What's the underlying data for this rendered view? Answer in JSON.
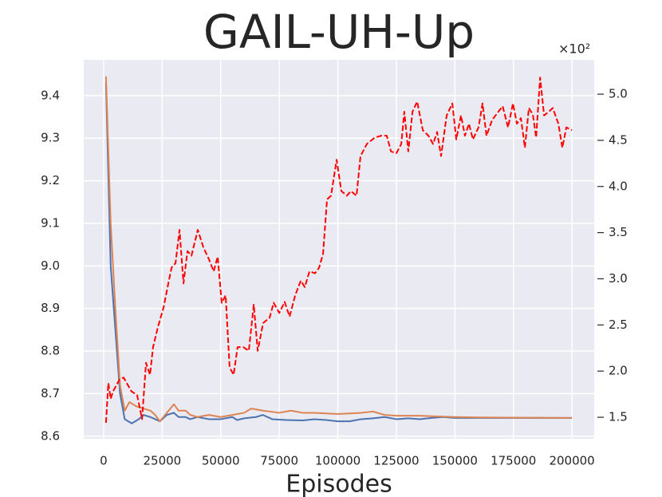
{
  "chart_data": {
    "type": "line",
    "title": "GAIL-UH-Up",
    "x_label": "Episodes",
    "y2_offset_text": "×10²",
    "xlim": [
      -8500,
      209500
    ],
    "xticks": [
      0,
      25000,
      50000,
      75000,
      100000,
      125000,
      150000,
      175000,
      200000
    ],
    "ylim": [
      8.594,
      9.484
    ],
    "yticks": [
      8.6,
      8.7,
      8.8,
      8.9,
      {
        "value": 9,
        "label": "9.0"
      },
      9.1,
      9.2,
      9.3,
      9.4
    ],
    "y2lim": [
      1.267,
      5.372
    ],
    "y2ticks": [
      1.5,
      {
        "value": 2,
        "label": "2.0"
      },
      2.5,
      {
        "value": 3,
        "label": "3.0"
      },
      3.5,
      {
        "value": 4,
        "label": "4.0"
      },
      4.5,
      {
        "value": 5,
        "label": "5.0"
      }
    ],
    "grid": true,
    "series": [
      {
        "color": "#4c72b0",
        "x": [
          1000,
          3000,
          5000,
          7000,
          9000,
          12000,
          15000,
          17000,
          20000,
          22000,
          24000,
          27000,
          30000,
          32000,
          35000,
          37000,
          40000,
          45000,
          50000,
          55000,
          57000,
          60000,
          65000,
          68000,
          72000,
          78000,
          85000,
          90000,
          95000,
          100000,
          105000,
          110000,
          115000,
          120000,
          125000,
          130000,
          135000,
          140000,
          145000,
          150000,
          200000
        ],
        "values": [
          9.43,
          9.0,
          8.85,
          8.7,
          8.64,
          8.63,
          8.64,
          8.65,
          8.645,
          8.64,
          8.635,
          8.65,
          8.655,
          8.645,
          8.645,
          8.64,
          8.645,
          8.64,
          8.64,
          8.645,
          8.638,
          8.642,
          8.645,
          8.65,
          8.64,
          8.638,
          8.637,
          8.64,
          8.638,
          8.635,
          8.635,
          8.64,
          8.642,
          8.645,
          8.64,
          8.642,
          8.64,
          8.643,
          8.645,
          8.643,
          8.643
        ]
      },
      {
        "color": "#dd8452",
        "x": [
          1000,
          3000,
          5000,
          7000,
          9000,
          11000,
          14000,
          17000,
          20000,
          22000,
          24000,
          27000,
          30000,
          32000,
          35000,
          37000,
          40000,
          45000,
          50000,
          55000,
          60000,
          63000,
          68000,
          75000,
          80000,
          85000,
          90000,
          100000,
          110000,
          115000,
          120000,
          125000,
          135000,
          140000,
          150000,
          160000,
          200000
        ],
        "values": [
          9.445,
          9.1,
          8.9,
          8.72,
          8.66,
          8.68,
          8.67,
          8.665,
          8.66,
          8.65,
          8.635,
          8.655,
          8.675,
          8.66,
          8.66,
          8.65,
          8.645,
          8.65,
          8.645,
          8.65,
          8.655,
          8.665,
          8.66,
          8.655,
          8.66,
          8.655,
          8.655,
          8.652,
          8.655,
          8.658,
          8.65,
          8.648,
          8.648,
          8.647,
          8.645,
          8.644,
          8.643
        ]
      },
      {
        "color": "#ff0000",
        "axis": "y2",
        "dashed": true,
        "x": [
          1000,
          2000,
          3000,
          4000,
          6800,
          8500,
          11900,
          14300,
          16400,
          18100,
          19800,
          21100,
          23200,
          25600,
          27300,
          29000,
          30700,
          32400,
          34100,
          35800,
          37500,
          40200,
          42600,
          45000,
          47000,
          48700,
          50400,
          52100,
          53800,
          55500,
          57200,
          59600,
          62000,
          64100,
          65800,
          68100,
          70900,
          72600,
          75000,
          77300,
          79400,
          81800,
          84200,
          85900,
          87900,
          90300,
          92000,
          93700,
          95400,
          97100,
          99500,
          101500,
          103900,
          105600,
          108000,
          109700,
          112400,
          115800,
          118600,
          120900,
          122700,
          125000,
          127100,
          128400,
          130100,
          131900,
          133900,
          136300,
          138700,
          140700,
          142400,
          144100,
          146500,
          148900,
          150600,
          152600,
          154300,
          156000,
          157700,
          160100,
          161800,
          163500,
          165900,
          168600,
          170400,
          172700,
          174800,
          176500,
          178200,
          179900,
          181600,
          183300,
          184700,
          186400,
          188100,
          190100,
          191800,
          194200,
          195900,
          197600,
          200000
        ],
        "values": [
          1.44,
          1.87,
          1.7,
          1.78,
          1.91,
          1.93,
          1.78,
          1.74,
          1.48,
          2.09,
          1.96,
          2.26,
          2.48,
          2.69,
          2.91,
          3.12,
          3.17,
          3.53,
          2.95,
          3.3,
          3.25,
          3.53,
          3.34,
          3.21,
          3.08,
          3.24,
          2.74,
          2.82,
          2.04,
          1.96,
          2.26,
          2.26,
          2.22,
          2.72,
          2.22,
          2.52,
          2.58,
          2.74,
          2.63,
          2.75,
          2.59,
          2.82,
          2.98,
          2.91,
          3.08,
          3.06,
          3.12,
          3.27,
          3.86,
          3.9,
          4.29,
          3.95,
          3.9,
          3.95,
          3.9,
          4.33,
          4.46,
          4.53,
          4.55,
          4.55,
          4.38,
          4.36,
          4.46,
          4.81,
          4.38,
          4.81,
          4.92,
          4.61,
          4.55,
          4.46,
          4.59,
          4.33,
          4.77,
          4.9,
          4.51,
          4.77,
          4.55,
          4.68,
          4.51,
          4.64,
          4.9,
          4.55,
          4.72,
          4.81,
          4.87,
          4.64,
          4.9,
          4.68,
          4.74,
          4.42,
          4.85,
          4.78,
          4.53,
          5.18,
          4.77,
          4.81,
          4.85,
          4.68,
          4.42,
          4.64,
          4.61
        ]
      }
    ]
  }
}
